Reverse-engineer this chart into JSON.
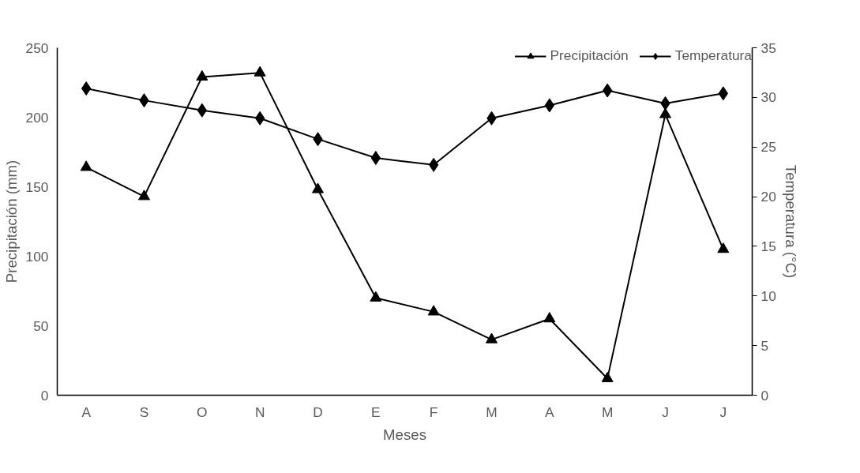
{
  "chart_data": {
    "type": "line",
    "xlabel": "Meses",
    "ylabel": "Precipitación (mm)",
    "y2label": "Temperatura (°C)",
    "categories": [
      "A",
      "S",
      "O",
      "N",
      "D",
      "E",
      "F",
      "M",
      "A",
      "M",
      "J",
      "J"
    ],
    "series": [
      {
        "name": "Precipitación",
        "color": "#000000",
        "marker": "triangle",
        "values": [
          164,
          143,
          229,
          232,
          148,
          70,
          60,
          40,
          55,
          12,
          202,
          105
        ]
      },
      {
        "name": "Temperatura",
        "color": "#000000",
        "marker": "diamond",
        "axis": "y2",
        "values": [
          30.9,
          29.7,
          28.7,
          27.9,
          25.8,
          23.9,
          23.2,
          27.9,
          29.2,
          30.7,
          29.4,
          30.4
        ]
      }
    ],
    "ylim": [
      0,
      250
    ],
    "yticks": [
      0,
      50,
      100,
      150,
      200,
      250
    ],
    "y2lim": [
      0,
      35
    ],
    "y2ticks": [
      0,
      5,
      10,
      15,
      20,
      25,
      30,
      35
    ],
    "grid": false,
    "legend": "top right",
    "line_style": "solid"
  }
}
